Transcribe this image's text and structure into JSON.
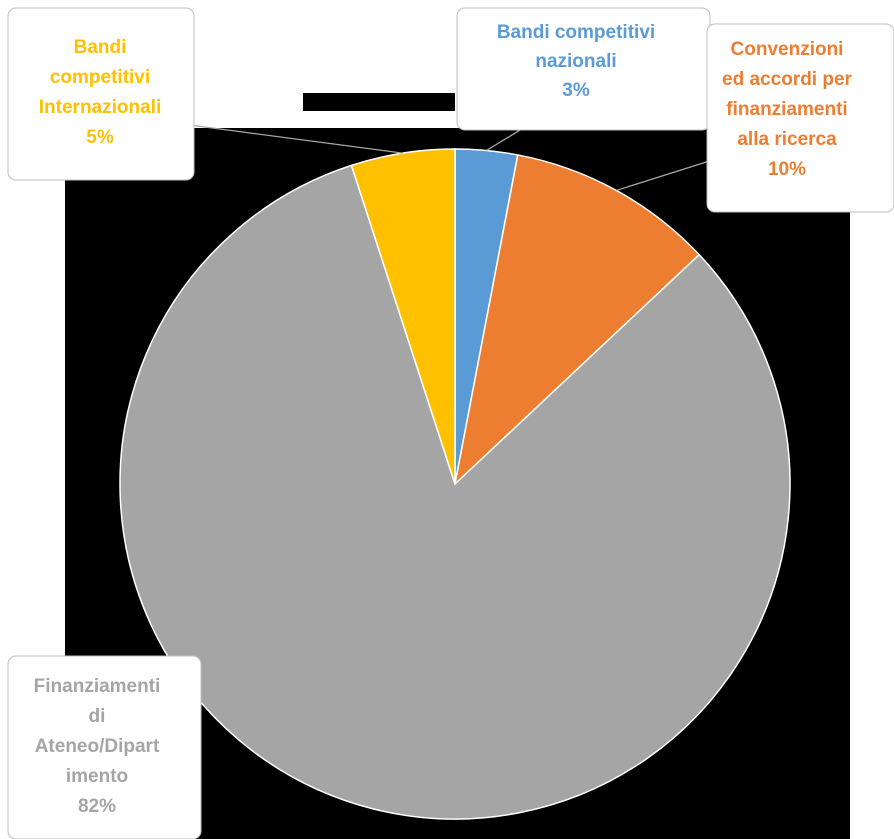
{
  "chart_data": {
    "type": "pie",
    "slices": [
      {
        "label_lines": [
          "Bandi competitivi",
          "nazionali"
        ],
        "percent_label": "3%",
        "value": 3,
        "color": "#5B9BD5"
      },
      {
        "label_lines": [
          "Convenzioni",
          "ed accordi per",
          "finanziamenti",
          "alla ricerca"
        ],
        "percent_label": "10%",
        "value": 10,
        "color": "#ED7D31"
      },
      {
        "label_lines": [
          "Finanziamenti",
          "di",
          "Ateneo/Dipart",
          "imento"
        ],
        "percent_label": "82%",
        "value": 82,
        "color": "#A5A5A5"
      },
      {
        "label_lines": [
          "Bandi",
          "competitivi",
          "Internazionali"
        ],
        "percent_label": "5%",
        "value": 5,
        "color": "#FFC000"
      }
    ],
    "background": "#000000",
    "leader_line_color": "#A6A6A6"
  }
}
